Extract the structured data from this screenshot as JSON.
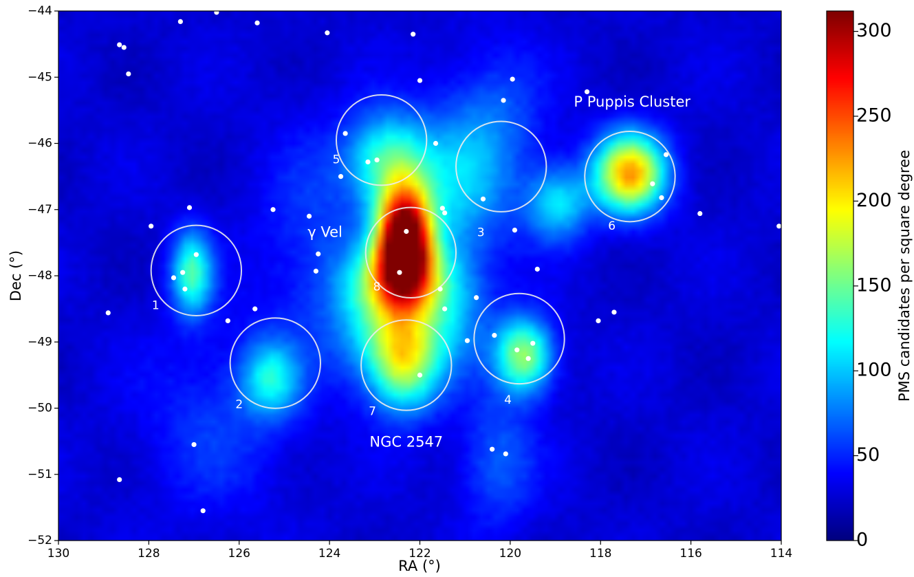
{
  "chart_data": {
    "type": "heatmap",
    "title": "",
    "xlabel": "RA (°)",
    "ylabel": "Dec (°)",
    "xlim": [
      130,
      114
    ],
    "ylim": [
      -52,
      -44
    ],
    "x_ticks": [
      130,
      128,
      126,
      124,
      122,
      120,
      118,
      116,
      114
    ],
    "y_ticks": [
      -52,
      -51,
      -50,
      -49,
      -48,
      -47,
      -46,
      -45,
      -44
    ],
    "x_tick_labels": [
      "130",
      "128",
      "126",
      "124",
      "122",
      "120",
      "118",
      "116",
      "114"
    ],
    "y_tick_labels": [
      "−52",
      "−51",
      "−50",
      "−49",
      "−48",
      "−47",
      "−46",
      "−45",
      "−44"
    ],
    "colorbar": {
      "label": "PMS candidates per square degree",
      "range": [
        0,
        312
      ],
      "colormap": "jet",
      "ticks": [
        0,
        50,
        100,
        150,
        200,
        250,
        300
      ],
      "tick_labels": [
        "0",
        "50",
        "100",
        "150",
        "200",
        "250",
        "300"
      ]
    },
    "density_peaks": [
      {
        "ra": 122.35,
        "dec": -47.45,
        "peak": 312,
        "sig_ra": 0.42,
        "sig_dec": 0.55
      },
      {
        "ra": 122.4,
        "dec": -48.05,
        "peak": 120,
        "sig_ra": 0.75,
        "sig_dec": 0.4
      },
      {
        "ra": 122.35,
        "dec": -49.25,
        "peak": 150,
        "sig_ra": 0.55,
        "sig_dec": 0.55
      },
      {
        "ra": 122.7,
        "dec": -46.25,
        "peak": 105,
        "sig_ra": 0.65,
        "sig_dec": 0.5
      },
      {
        "ra": 117.35,
        "dec": -46.45,
        "peak": 195,
        "sig_ra": 0.55,
        "sig_dec": 0.42
      },
      {
        "ra": 119.7,
        "dec": -49.2,
        "peak": 140,
        "sig_ra": 0.45,
        "sig_dec": 0.4
      },
      {
        "ra": 127.05,
        "dec": -47.95,
        "peak": 110,
        "sig_ra": 0.32,
        "sig_dec": 0.45
      },
      {
        "ra": 125.3,
        "dec": -49.55,
        "peak": 82,
        "sig_ra": 0.45,
        "sig_dec": 0.4
      },
      {
        "ra": 118.95,
        "dec": -46.9,
        "peak": 82,
        "sig_ra": 0.5,
        "sig_dec": 0.4
      },
      {
        "ra": 121.2,
        "dec": -46.8,
        "peak": 60,
        "sig_ra": 0.8,
        "sig_dec": 0.8
      },
      {
        "ra": 120.4,
        "dec": -45.7,
        "peak": 40,
        "sig_ra": 0.8,
        "sig_dec": 0.8
      },
      {
        "ra": 124.3,
        "dec": -47.5,
        "peak": 30,
        "sig_ra": 0.9,
        "sig_dec": 1.2
      },
      {
        "ra": 120.3,
        "dec": -50.8,
        "peak": 42,
        "sig_ra": 0.6,
        "sig_dec": 0.7
      },
      {
        "ra": 123.0,
        "dec": -48.7,
        "peak": 60,
        "sig_ra": 0.7,
        "sig_dec": 0.6
      },
      {
        "ra": 121.3,
        "dec": -48.6,
        "peak": 55,
        "sig_ra": 0.6,
        "sig_dec": 0.6
      },
      {
        "ra": 126.5,
        "dec": -50.2,
        "peak": 28,
        "sig_ra": 1.2,
        "sig_dec": 1.0
      }
    ],
    "circles": [
      {
        "label": "1",
        "ra": 126.95,
        "dec": -47.92,
        "radius_deg": 1.0,
        "label_ra": 127.85,
        "label_dec": -48.45
      },
      {
        "label": "2",
        "ra": 125.2,
        "dec": -49.32,
        "radius_deg": 1.0,
        "label_ra": 126.0,
        "label_dec": -49.95
      },
      {
        "label": "3",
        "ra": 120.2,
        "dec": -46.35,
        "radius_deg": 1.0,
        "label_ra": 120.65,
        "label_dec": -47.35
      },
      {
        "label": "4",
        "ra": 119.8,
        "dec": -48.95,
        "radius_deg": 1.0,
        "label_ra": 120.05,
        "label_dec": -49.88
      },
      {
        "label": "5",
        "ra": 122.85,
        "dec": -45.95,
        "radius_deg": 1.0,
        "label_ra": 123.85,
        "label_dec": -46.25
      },
      {
        "label": "6",
        "ra": 117.35,
        "dec": -46.5,
        "radius_deg": 1.0,
        "label_ra": 117.75,
        "label_dec": -47.25
      },
      {
        "label": "7",
        "ra": 122.3,
        "dec": -49.35,
        "radius_deg": 1.0,
        "label_ra": 123.05,
        "label_dec": -50.05
      },
      {
        "label": "8",
        "ra": 122.2,
        "dec": -47.65,
        "radius_deg": 1.0,
        "label_ra": 122.95,
        "label_dec": -48.17
      }
    ],
    "annotations": [
      {
        "text": "γ Vel",
        "ra": 124.1,
        "dec": -47.35
      },
      {
        "text": "P Puppis Cluster",
        "ra": 117.3,
        "dec": -45.38
      },
      {
        "text": "NGC 2547",
        "ra": 122.3,
        "dec": -50.52
      }
    ],
    "stars": [
      {
        "ra": 126.5,
        "dec": -44.02
      },
      {
        "ra": 127.3,
        "dec": -44.16
      },
      {
        "ra": 125.6,
        "dec": -44.18
      },
      {
        "ra": 128.65,
        "dec": -44.51
      },
      {
        "ra": 128.55,
        "dec": -44.55
      },
      {
        "ra": 128.45,
        "dec": -44.95
      },
      {
        "ra": 124.05,
        "dec": -44.33
      },
      {
        "ra": 122.15,
        "dec": -44.35
      },
      {
        "ra": 122.0,
        "dec": -45.05
      },
      {
        "ra": 119.95,
        "dec": -45.03
      },
      {
        "ra": 120.15,
        "dec": -45.35
      },
      {
        "ra": 118.3,
        "dec": -45.22
      },
      {
        "ra": 123.65,
        "dec": -45.85
      },
      {
        "ra": 121.65,
        "dec": -46.0
      },
      {
        "ra": 123.15,
        "dec": -46.28
      },
      {
        "ra": 122.95,
        "dec": -46.25
      },
      {
        "ra": 123.75,
        "dec": -46.5
      },
      {
        "ra": 116.55,
        "dec": -46.17
      },
      {
        "ra": 116.85,
        "dec": -46.61
      },
      {
        "ra": 116.65,
        "dec": -46.82
      },
      {
        "ra": 120.6,
        "dec": -46.84
      },
      {
        "ra": 121.5,
        "dec": -46.98
      },
      {
        "ra": 121.45,
        "dec": -47.05
      },
      {
        "ra": 115.8,
        "dec": -47.06
      },
      {
        "ra": 114.05,
        "dec": -47.25
      },
      {
        "ra": 119.9,
        "dec": -47.31
      },
      {
        "ra": 125.25,
        "dec": -47.0
      },
      {
        "ra": 127.1,
        "dec": -46.97
      },
      {
        "ra": 127.95,
        "dec": -47.25
      },
      {
        "ra": 124.45,
        "dec": -47.1
      },
      {
        "ra": 122.3,
        "dec": -47.33
      },
      {
        "ra": 124.25,
        "dec": -47.67
      },
      {
        "ra": 126.95,
        "dec": -47.68
      },
      {
        "ra": 127.25,
        "dec": -47.95
      },
      {
        "ra": 127.45,
        "dec": -48.03
      },
      {
        "ra": 127.2,
        "dec": -48.2
      },
      {
        "ra": 124.3,
        "dec": -47.93
      },
      {
        "ra": 122.45,
        "dec": -47.95
      },
      {
        "ra": 119.4,
        "dec": -47.9
      },
      {
        "ra": 121.55,
        "dec": -48.2
      },
      {
        "ra": 121.45,
        "dec": -48.5
      },
      {
        "ra": 120.75,
        "dec": -48.33
      },
      {
        "ra": 125.65,
        "dec": -48.5
      },
      {
        "ra": 126.25,
        "dec": -48.68
      },
      {
        "ra": 128.9,
        "dec": -48.56
      },
      {
        "ra": 117.7,
        "dec": -48.55
      },
      {
        "ra": 118.05,
        "dec": -48.68
      },
      {
        "ra": 120.35,
        "dec": -48.9
      },
      {
        "ra": 120.95,
        "dec": -48.98
      },
      {
        "ra": 119.5,
        "dec": -49.02
      },
      {
        "ra": 119.85,
        "dec": -49.12
      },
      {
        "ra": 119.6,
        "dec": -49.25
      },
      {
        "ra": 122.0,
        "dec": -49.5
      },
      {
        "ra": 127.0,
        "dec": -50.55
      },
      {
        "ra": 120.4,
        "dec": -50.62
      },
      {
        "ra": 120.1,
        "dec": -50.69
      },
      {
        "ra": 128.65,
        "dec": -51.08
      },
      {
        "ra": 126.8,
        "dec": -51.55
      }
    ]
  }
}
